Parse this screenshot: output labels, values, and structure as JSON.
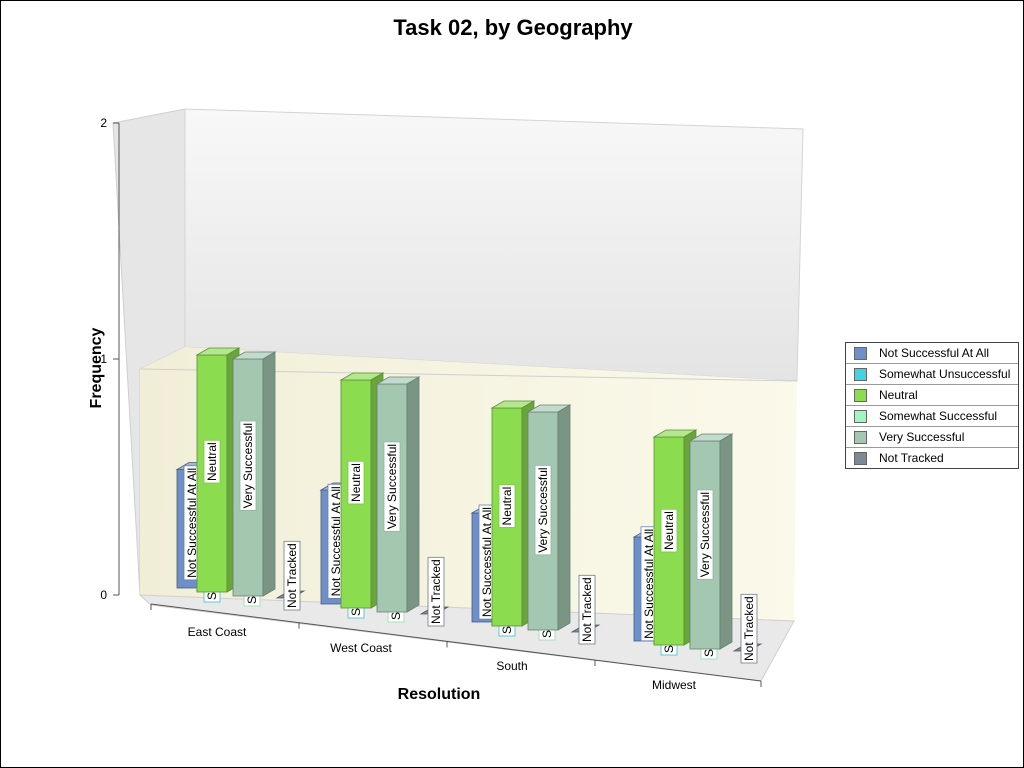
{
  "chart_data": {
    "type": "bar",
    "title": "Task 02, by Geography",
    "xlabel": "Resolution",
    "ylabel": "Frequency",
    "ylim": [
      0,
      2
    ],
    "yticks": [
      "0",
      "1",
      "2"
    ],
    "categories": [
      "East Coast",
      "West Coast",
      "South",
      "Midwest"
    ],
    "series": [
      {
        "name": "Not Successful At All",
        "values": [
          1,
          1,
          1,
          1
        ],
        "color": "#6f8fc9"
      },
      {
        "name": "Somewhat Unsuccessful",
        "values": [
          0,
          0,
          0,
          0
        ],
        "color": "#3fd3e3"
      },
      {
        "name": "Neutral",
        "values": [
          2,
          2,
          2,
          2
        ],
        "color": "#8cdc50"
      },
      {
        "name": "Somewhat Successful",
        "values": [
          0,
          0,
          0,
          0
        ],
        "color": "#9ff6c2"
      },
      {
        "name": "Very Successful",
        "values": [
          2,
          2,
          2,
          2
        ],
        "color": "#a3c7b0"
      },
      {
        "name": "Not Tracked",
        "values": [
          0,
          0,
          0,
          0
        ],
        "color": "#7b8a94"
      }
    ],
    "grid": true,
    "legend": "right"
  }
}
